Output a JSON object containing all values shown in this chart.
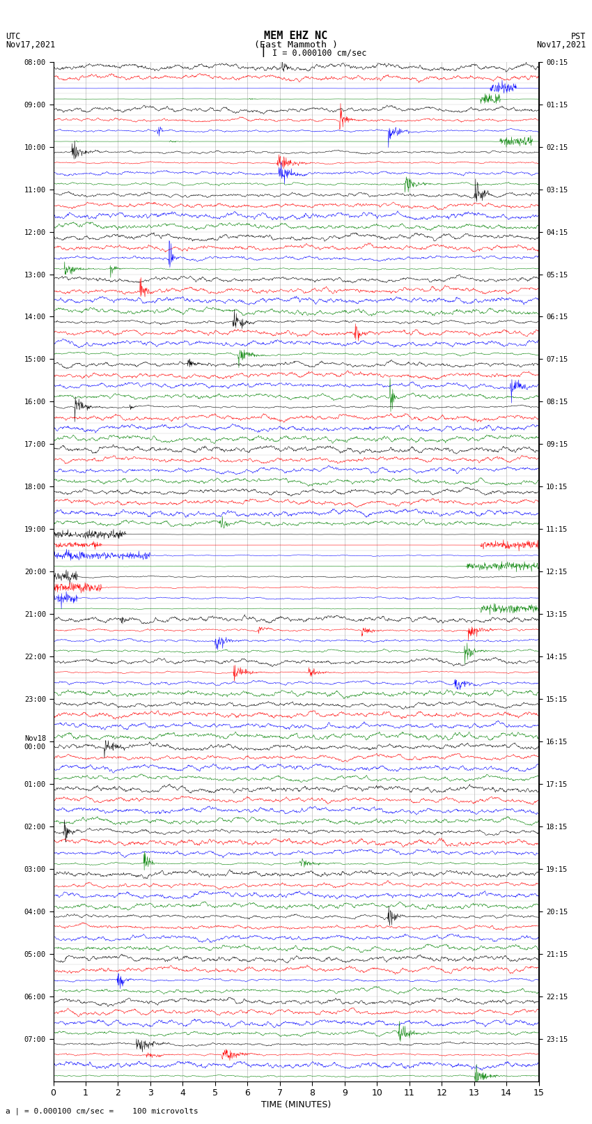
{
  "title_line1": "MEM EHZ NC",
  "title_line2": "(East Mammoth )",
  "scale_label": "I = 0.000100 cm/sec",
  "bottom_label": "a | = 0.000100 cm/sec =    100 microvolts",
  "xlabel": "TIME (MINUTES)",
  "utc_label1": "UTC",
  "utc_label2": "Nov17,2021",
  "pst_label1": "PST",
  "pst_label2": "Nov17,2021",
  "hour_labels_utc": [
    "08:00",
    "09:00",
    "10:00",
    "11:00",
    "12:00",
    "13:00",
    "14:00",
    "15:00",
    "16:00",
    "17:00",
    "18:00",
    "19:00",
    "20:00",
    "21:00",
    "22:00",
    "23:00",
    "Nov18\n00:00",
    "01:00",
    "02:00",
    "03:00",
    "04:00",
    "05:00",
    "06:00",
    "07:00"
  ],
  "hour_labels_pst": [
    "00:15",
    "01:15",
    "02:15",
    "03:15",
    "04:15",
    "05:15",
    "06:15",
    "07:15",
    "08:15",
    "09:15",
    "10:15",
    "11:15",
    "12:15",
    "13:15",
    "14:15",
    "15:15",
    "16:15",
    "17:15",
    "18:15",
    "19:15",
    "20:15",
    "21:15",
    "22:15",
    "23:15"
  ],
  "trace_colors": [
    "black",
    "red",
    "blue",
    "green"
  ],
  "n_rows": 96,
  "n_points": 1500,
  "x_min": 0,
  "x_max": 15,
  "bg_color": "white",
  "grid_color": "#aaaaaa",
  "fig_width": 8.5,
  "fig_height": 16.13,
  "dpi": 100
}
